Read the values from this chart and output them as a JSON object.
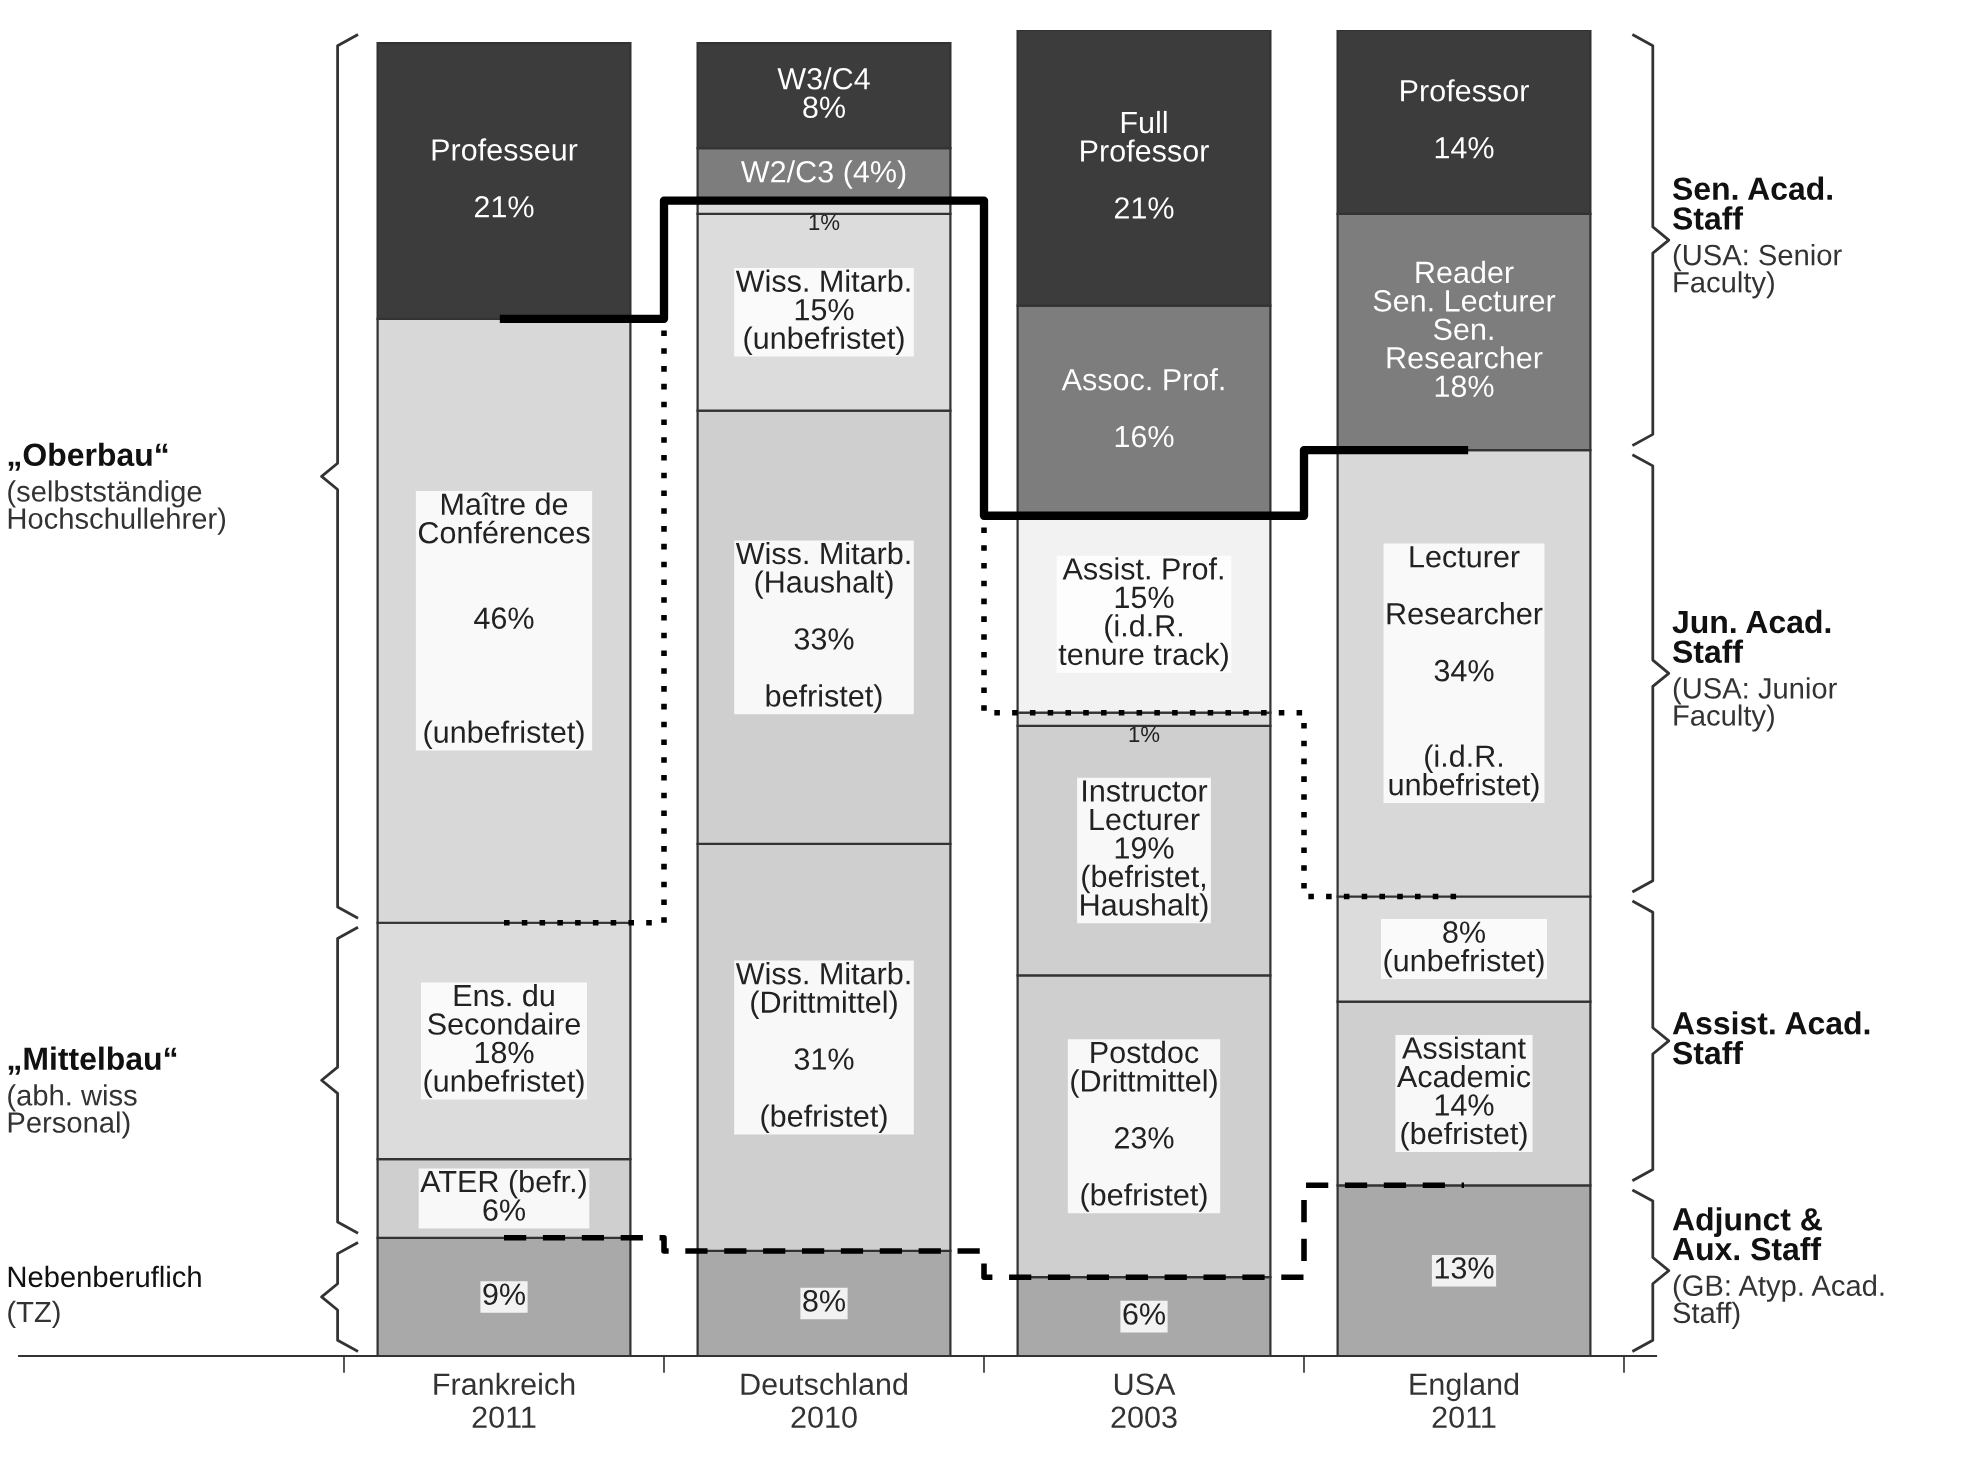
{
  "chart_data": {
    "type": "bar",
    "stacked": true,
    "legend": false,
    "grid": false,
    "tick_labels": "x",
    "categories": [
      "Frankreich\n2011",
      "Deutschland\n2010",
      "USA\n2003",
      "England\n2011"
    ],
    "series": [
      {
        "colors": [
          "#a9a9a9",
          "#a9a9a9",
          "#a9a9a9",
          "#a9a9a9"
        ],
        "values": [
          9,
          8,
          6,
          13
        ],
        "value_labels": [
          "9%",
          "8%",
          "6%",
          "13%"
        ]
      },
      {
        "colors": [
          "#cfcfcf",
          "#cfcfcf",
          "#cfcfcf",
          "#cfcfcf"
        ],
        "values": [
          6,
          31,
          23,
          14
        ],
        "value_labels": [
          "ATER (befr.)\n6%",
          "Wiss. Mitarb.\n(Drittmittel)\n\n31%\n\n(befristet)",
          "Postdoc\n(Drittmittel)\n\n23%\n\n(befristet)",
          "Assistant\nAcademic\n14%\n(befristet)"
        ]
      },
      {
        "colors": [
          "#dcdcdc",
          "#cfcfcf",
          "#cfcfcf",
          "#dcdcdc"
        ],
        "values": [
          18,
          33,
          19,
          8
        ],
        "value_labels": [
          "Ens. du\nSecondaire\n18%\n(unbefristet)",
          "Wiss. Mitarb.\n(Haushalt)\n\n33%\n\nbefristet)",
          "Instructor\nLecturer\n19%\n(befristet,\nHaushalt)",
          "8%\n(unbefristet)"
        ]
      },
      {
        "colors": [
          "#d8d8d8",
          "#dcdcdc",
          "#dcdcdc",
          "#d8d8d8"
        ],
        "values": [
          46,
          15,
          1,
          34
        ],
        "value_labels": [
          "Maître de\nConférences\n\n\n46%\n\n\n\n(unbefristet)",
          "Wiss. Mitarb.\n15%\n(unbefristet)",
          "1%",
          "Lecturer\n\nResearcher\n\n34%\n\n\n(i.d.R.\nunbefristet)"
        ]
      },
      {
        "colors": [
          "#3c3c3c",
          "#dcdcdc",
          "#f2f2f2",
          "#7d7d7d"
        ],
        "values": [
          21,
          1,
          15,
          18
        ],
        "value_labels": [
          "Professeur\n\n21%",
          "1%",
          "Assist. Prof.\n15%\n(i.d.R.\ntenure track)",
          "Reader\nSen. Lecturer\nSen.\nResearcher\n18%"
        ]
      },
      {
        "colors": [
          null,
          "#7d7d7d",
          "#7d7d7d",
          "#3c3c3c"
        ],
        "values": [
          null,
          4,
          16,
          14
        ],
        "value_labels": [
          null,
          "W2/C3 (4%)",
          "Assoc. Prof.\n\n16%",
          "Professor\n\n14%"
        ]
      },
      {
        "colors": [
          null,
          "#3c3c3c",
          "#3c3c3c",
          null
        ],
        "values": [
          null,
          8,
          21,
          null
        ],
        "value_labels": [
          null,
          "W3/C4\n8%",
          "Full\nProfessor\n\n21%",
          null
        ]
      },
      {
        "type": "step",
        "color": "#000000",
        "line_style": "dotted",
        "values": [
          33,
          88,
          49,
          35
        ]
      },
      {
        "type": "step",
        "color": "#000000",
        "line_style": "dashed",
        "values": [
          9,
          8,
          6,
          13
        ]
      },
      {
        "type": "step",
        "color": "#000000",
        "line_style": "solid",
        "values": [
          79,
          88,
          64,
          69
        ]
      }
    ],
    "annotations": [
      "„Oberbau“\n(selbstständige\nHochschullehrer)",
      "„Mittelbau“\n(abh. wiss\nPersonal)",
      "Nebenberuflich\n(TZ)",
      "Sen. Acad.\nStaff\n(USA: Senior\nFaculty)",
      "Jun. Acad.\nStaff\n(USA: Junior\nFaculty)",
      "Assist. Acad.\nStaff",
      "Adjunct &\nAux. Staff\n(GB: Atyp. Acad.\nStaff)"
    ]
  }
}
